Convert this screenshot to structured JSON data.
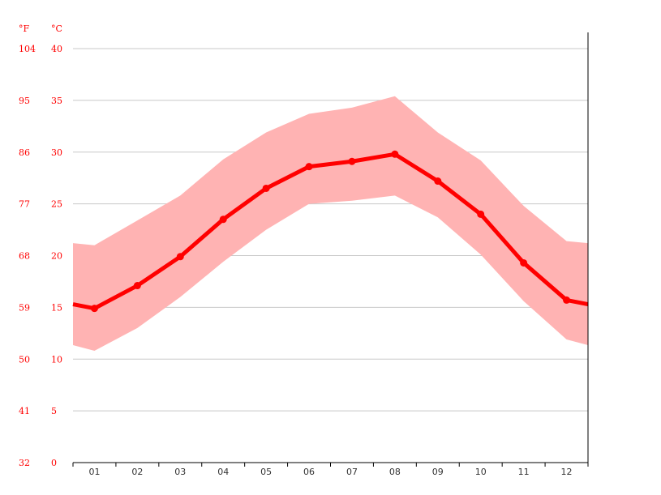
{
  "chart_data": {
    "type": "line",
    "title": "",
    "xlabel": "",
    "ylabel": "",
    "unit_f": "°F",
    "unit_c": "°C",
    "categories": [
      "01",
      "02",
      "03",
      "04",
      "05",
      "06",
      "07",
      "08",
      "09",
      "10",
      "11",
      "12"
    ],
    "y_ticks_c": [
      "0",
      "5",
      "10",
      "15",
      "20",
      "25",
      "30",
      "35",
      "40"
    ],
    "y_ticks_f": [
      "32",
      "41",
      "50",
      "59",
      "68",
      "77",
      "86",
      "95",
      "104"
    ],
    "ylim": [
      0,
      40
    ],
    "grid": true,
    "series": [
      {
        "role": "average",
        "values": [
          14.9,
          17.1,
          19.9,
          23.5,
          26.5,
          28.6,
          29.1,
          29.8,
          27.2,
          24.0,
          19.3,
          15.7
        ],
        "color": "#ff0000"
      },
      {
        "role": "max",
        "values": [
          21.0,
          23.4,
          25.8,
          29.3,
          31.9,
          33.7,
          34.3,
          35.4,
          31.9,
          29.2,
          24.8,
          21.4
        ],
        "color": "#ffb3b3"
      },
      {
        "role": "min",
        "values": [
          10.8,
          13.0,
          16.0,
          19.4,
          22.5,
          25.0,
          25.3,
          25.8,
          23.7,
          20.1,
          15.6,
          11.9
        ],
        "color": "#ffb3b3"
      }
    ]
  }
}
